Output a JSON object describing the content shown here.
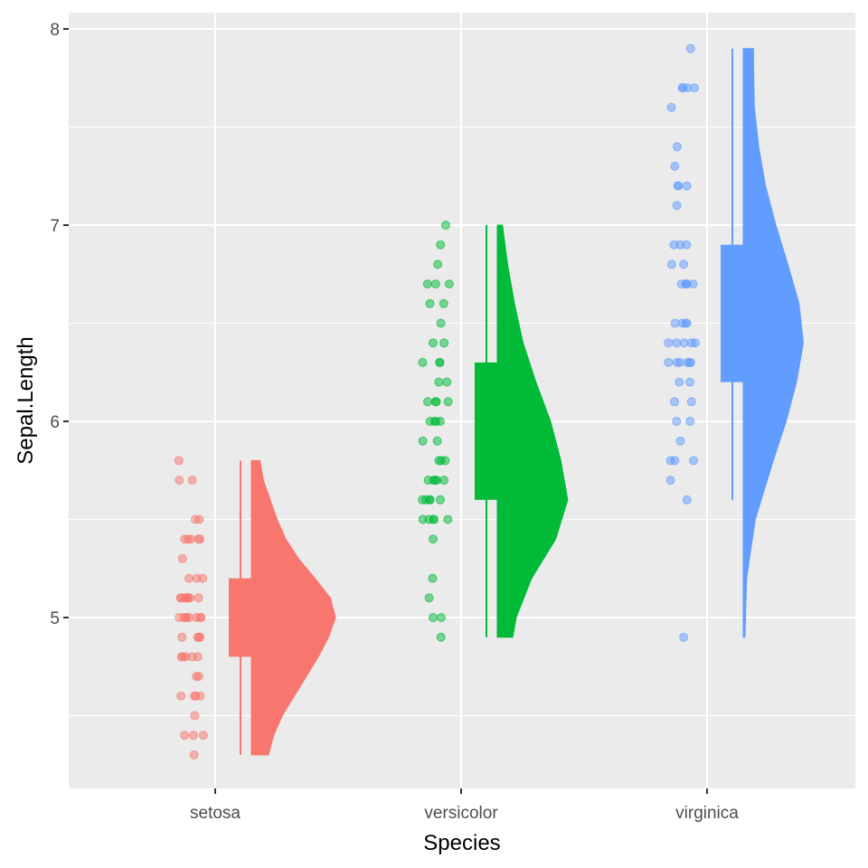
{
  "chart_data": {
    "type": "raincloud",
    "xlabel": "Species",
    "ylabel": "Sepal.Length",
    "ylim": [
      4.1,
      8.1
    ],
    "y_ticks": [
      5,
      6,
      7,
      8
    ],
    "y_tick_labels": [
      "5",
      "6",
      "7",
      "8"
    ],
    "grid": true,
    "legend": "none",
    "colors": {
      "panel_background": "#EBEBEB",
      "gridline": "#FFFFFF"
    },
    "categories": [
      "setosa",
      "versicolor",
      "virginica"
    ],
    "series": [
      {
        "category": "setosa",
        "color": "#F8766D",
        "box": {
          "lower_whisker": 4.3,
          "q1": 4.8,
          "median": 5.0,
          "q3": 5.2,
          "upper_whisker": 5.8
        },
        "points": [
          4.3,
          4.4,
          4.4,
          4.4,
          4.5,
          4.6,
          4.6,
          4.6,
          4.6,
          4.7,
          4.7,
          4.8,
          4.8,
          4.8,
          4.8,
          4.8,
          4.9,
          4.9,
          4.9,
          4.9,
          5.0,
          5.0,
          5.0,
          5.0,
          5.0,
          5.0,
          5.0,
          5.0,
          5.1,
          5.1,
          5.1,
          5.1,
          5.1,
          5.1,
          5.1,
          5.1,
          5.2,
          5.2,
          5.2,
          5.3,
          5.4,
          5.4,
          5.4,
          5.4,
          5.4,
          5.5,
          5.5,
          5.7,
          5.7,
          5.8
        ],
        "density": {
          "y": [
            4.3,
            4.4,
            4.5,
            4.6,
            4.7,
            4.8,
            4.9,
            5.0,
            5.1,
            5.2,
            5.3,
            5.4,
            5.5,
            5.6,
            5.7,
            5.8
          ],
          "w": [
            0.2,
            0.26,
            0.36,
            0.5,
            0.64,
            0.78,
            0.9,
            0.98,
            0.92,
            0.74,
            0.55,
            0.4,
            0.3,
            0.22,
            0.14,
            0.1
          ]
        }
      },
      {
        "category": "versicolor",
        "color": "#00BA38",
        "box": {
          "lower_whisker": 4.9,
          "q1": 5.6,
          "median": 5.9,
          "q3": 6.3,
          "upper_whisker": 7.0
        },
        "points": [
          4.9,
          5.0,
          5.0,
          5.1,
          5.2,
          5.4,
          5.5,
          5.5,
          5.5,
          5.5,
          5.5,
          5.6,
          5.6,
          5.6,
          5.6,
          5.6,
          5.7,
          5.7,
          5.7,
          5.7,
          5.7,
          5.8,
          5.8,
          5.8,
          5.9,
          5.9,
          6.0,
          6.0,
          6.0,
          6.0,
          6.1,
          6.1,
          6.1,
          6.1,
          6.2,
          6.2,
          6.3,
          6.3,
          6.3,
          6.4,
          6.4,
          6.5,
          6.6,
          6.6,
          6.7,
          6.7,
          6.7,
          6.8,
          6.9,
          7.0
        ],
        "density": {
          "y": [
            4.9,
            5.0,
            5.2,
            5.4,
            5.6,
            5.8,
            6.0,
            6.2,
            6.4,
            6.6,
            6.8,
            7.0
          ],
          "w": [
            0.18,
            0.22,
            0.4,
            0.68,
            0.82,
            0.74,
            0.62,
            0.45,
            0.3,
            0.2,
            0.12,
            0.06
          ]
        }
      },
      {
        "category": "virginica",
        "color": "#619CFF",
        "box": {
          "lower_whisker": 5.6,
          "q1": 6.2,
          "median": 6.5,
          "q3": 6.9,
          "upper_whisker": 7.9
        },
        "points": [
          4.9,
          5.6,
          5.7,
          5.8,
          5.8,
          5.8,
          5.9,
          6.0,
          6.0,
          6.1,
          6.1,
          6.2,
          6.2,
          6.3,
          6.3,
          6.3,
          6.3,
          6.3,
          6.3,
          6.4,
          6.4,
          6.4,
          6.4,
          6.4,
          6.5,
          6.5,
          6.5,
          6.5,
          6.7,
          6.7,
          6.7,
          6.7,
          6.7,
          6.8,
          6.8,
          6.9,
          6.9,
          6.9,
          7.1,
          7.2,
          7.2,
          7.2,
          7.3,
          7.4,
          7.6,
          7.7,
          7.7,
          7.7,
          7.7,
          7.9
        ],
        "density": {
          "y": [
            4.9,
            5.2,
            5.5,
            5.8,
            6.0,
            6.2,
            6.4,
            6.6,
            6.8,
            7.0,
            7.2,
            7.4,
            7.6,
            7.8,
            7.9
          ],
          "w": [
            0.02,
            0.04,
            0.14,
            0.35,
            0.5,
            0.62,
            0.7,
            0.65,
            0.52,
            0.38,
            0.26,
            0.18,
            0.13,
            0.12,
            0.12
          ]
        }
      }
    ]
  }
}
